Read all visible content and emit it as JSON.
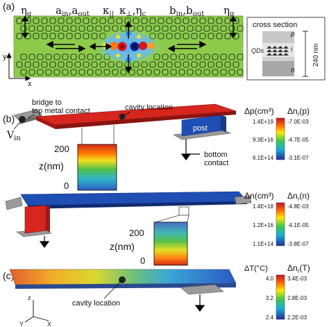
{
  "panel_a": {
    "label": "(a)",
    "eta_g_left": "η",
    "eta_g_left_sub": "g",
    "eta_g_right": "η",
    "eta_g_right_sub": "g",
    "a_label": "a",
    "a_in_sub": "in",
    "a_out": ",a",
    "a_out_sub": "out",
    "kappa_par": "κ",
    "kappa_par_sub": "||",
    "kappa_perp": "κ",
    "kappa_perp_sub": "⊥",
    "eta_c": ",η",
    "eta_c_sub": "c",
    "b_label": "b",
    "b_in_sub": "in",
    "b_out": ",b",
    "b_out_sub": "out",
    "y_axis": "y",
    "x_axis": "x"
  },
  "cross_section": {
    "title": "cross section",
    "p": "p",
    "i": "i",
    "n": "n",
    "qds": "QDs",
    "thickness": "240 nm"
  },
  "panel_b": {
    "label": "(b)",
    "bridge_label_1": "bridge to",
    "bridge_label_2": "top metal contact",
    "cavity_location": "cavity location",
    "vin": "V",
    "vin_sub": "in",
    "post": "post",
    "bottom_contact_1": "bottom",
    "bottom_contact_2": "contact",
    "inset1_top": "200",
    "inset1_axis": "z(nm)",
    "inset1_bottom": "0",
    "inset2_top": "200",
    "inset2_axis": "z(nm)",
    "inset2_bottom": "0"
  },
  "legend_p": {
    "left_title": "Δp(cm³)",
    "right_title": "Δn",
    "right_title_sub": "r",
    "right_title_tail": "(p)",
    "left_ticks": [
      "1.4E+19",
      "9.3E+16",
      "6.1E+14"
    ],
    "right_ticks": [
      "-7.0E-03",
      "-4.7E-05",
      "-3.1E-07"
    ]
  },
  "legend_n": {
    "left_title": "Δn(cm³)",
    "right_title": "Δn",
    "right_title_sub": "r",
    "right_title_tail": "(n)",
    "left_ticks": [
      "1.4E+18",
      "1.2E+16",
      "1.1E+14"
    ],
    "right_ticks": [
      "-4.8E-03",
      "-4.1E-05",
      "-3.8E-07"
    ]
  },
  "panel_c": {
    "label": "(c)",
    "cavity_location": "cavity location",
    "z_axis": "z",
    "y_axis": "Y",
    "x_axis": "X"
  },
  "legend_t": {
    "left_title": "ΔT(°C)",
    "right_title": "Δn",
    "right_title_sub": "r",
    "right_title_tail": "(T)",
    "left_ticks": [
      "4.0",
      "3.2",
      "2.4"
    ],
    "right_ticks": [
      "3.4E-03",
      "2.8E-03",
      "2.2E-03"
    ]
  },
  "colors": {
    "phc_green": "#8ecb4a",
    "hole_outline": "#1e3b22",
    "bar_red": "#d7261e",
    "bar_blue": "#1f4fb5",
    "contact_gray": "#a9a9a9"
  }
}
